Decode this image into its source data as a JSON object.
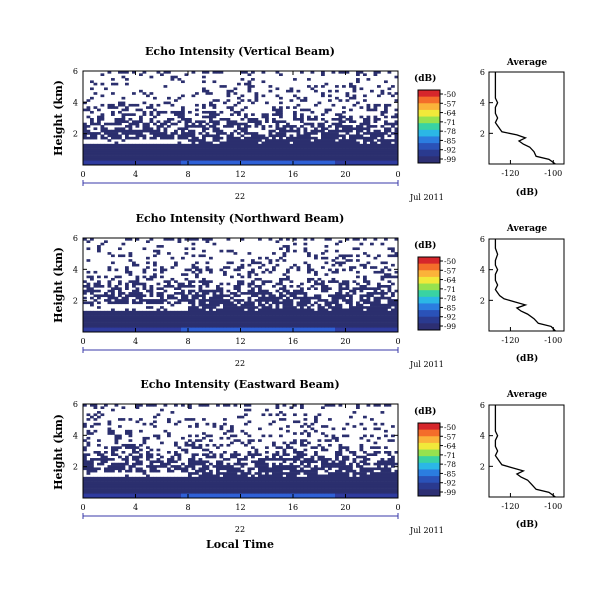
{
  "figure": {
    "xlabel": "Local Time",
    "colorbar_unit": "(dB)",
    "colorbar_ticks": [
      "-50",
      "-57",
      "-64",
      "-71",
      "-78",
      "-85",
      "-92",
      "-99"
    ],
    "colorbar_colors": [
      "#d6262b",
      "#f46d2a",
      "#fbb33a",
      "#f1e93a",
      "#96e24f",
      "#39d3a3",
      "#2bb7e6",
      "#2b7de0",
      "#2a52b8",
      "#2a3a8f",
      "#2d2f73"
    ],
    "panel_colors": {
      "dense": "#2b2f6e",
      "mid": "#2e3a9e",
      "bright": "#2e5fd6",
      "empty": "#ffffff"
    }
  },
  "chart_data": [
    {
      "type": "heatmap",
      "title": "Echo Intensity (Vertical Beam)",
      "ylabel": "Height (km)",
      "x_ticks": [
        "0",
        "4",
        "8",
        "12",
        "16",
        "20",
        "0"
      ],
      "y_ticks": [
        "2",
        "4",
        "6"
      ],
      "xlim": [
        0,
        24
      ],
      "ylim": [
        0,
        6
      ],
      "date_day": "22",
      "date_label": "Jul 2011",
      "clim": [
        -99,
        -50
      ],
      "layers": {
        "solid_top_km": 1.3,
        "bright_band_km": [
          0.0,
          0.35
        ],
        "patchy_top_km": 3.3,
        "sparse_top_km": 5.8
      },
      "profile": {
        "title": "Average",
        "xlabel": "(dB)",
        "x_ticks": [
          "-120",
          "-100"
        ],
        "xlim": [
          -130,
          -95
        ],
        "y_ticks": [
          "2",
          "4",
          "6"
        ],
        "ylim": [
          0,
          6
        ],
        "height_km": [
          0.0,
          0.3,
          0.5,
          0.8,
          1.1,
          1.3,
          1.5,
          1.7,
          1.9,
          2.1,
          2.3,
          2.5,
          2.7,
          3.0,
          3.3,
          3.7,
          4.0,
          4.3,
          4.6,
          5.0,
          5.4,
          5.8,
          6.0
        ],
        "db": [
          -99,
          -102,
          -108,
          -109,
          -111,
          -114,
          -116,
          -113,
          -117,
          -124,
          -125,
          -126,
          -127,
          -126,
          -127,
          -127,
          -126,
          -127,
          -127,
          -127,
          -127,
          -127,
          -127
        ]
      }
    },
    {
      "type": "heatmap",
      "title": "Echo Intensity (Northward Beam)",
      "ylabel": "Height (km)",
      "x_ticks": [
        "0",
        "4",
        "8",
        "12",
        "16",
        "20",
        "0"
      ],
      "y_ticks": [
        "2",
        "4",
        "6"
      ],
      "xlim": [
        0,
        24
      ],
      "ylim": [
        0,
        6
      ],
      "date_day": "22",
      "date_label": "Jul 2011",
      "clim": [
        -99,
        -50
      ],
      "layers": {
        "solid_top_km": 1.4,
        "bright_band_km": [
          0.0,
          0.3
        ],
        "patchy_top_km": 3.2,
        "sparse_top_km": 5.8
      },
      "profile": {
        "title": "Average",
        "xlabel": "(dB)",
        "x_ticks": [
          "-120",
          "-100"
        ],
        "xlim": [
          -130,
          -95
        ],
        "y_ticks": [
          "2",
          "4",
          "6"
        ],
        "ylim": [
          0,
          6
        ],
        "height_km": [
          0.0,
          0.3,
          0.5,
          0.8,
          1.1,
          1.3,
          1.5,
          1.7,
          1.9,
          2.1,
          2.3,
          2.5,
          2.7,
          3.0,
          3.3,
          3.7,
          4.0,
          4.3,
          4.6,
          5.0,
          5.4,
          5.8,
          6.0
        ],
        "db": [
          -99,
          -101,
          -107,
          -109,
          -112,
          -115,
          -117,
          -113,
          -118,
          -123,
          -125,
          -126,
          -127,
          -126,
          -127,
          -127,
          -126,
          -127,
          -127,
          -126,
          -127,
          -127,
          -127
        ]
      }
    },
    {
      "type": "heatmap",
      "title": "Echo Intensity (Eastward Beam)",
      "ylabel": "Height (km)",
      "x_ticks": [
        "0",
        "4",
        "8",
        "12",
        "16",
        "20",
        "0"
      ],
      "y_ticks": [
        "2",
        "4",
        "6"
      ],
      "xlim": [
        0,
        24
      ],
      "ylim": [
        0,
        6
      ],
      "date_day": "22",
      "date_label": "Jul 2011",
      "clim": [
        -99,
        -50
      ],
      "layers": {
        "solid_top_km": 1.3,
        "bright_band_km": [
          0.0,
          0.3
        ],
        "patchy_top_km": 3.0,
        "sparse_top_km": 5.8
      },
      "profile": {
        "title": "Average",
        "xlabel": "(dB)",
        "x_ticks": [
          "-120",
          "-100"
        ],
        "xlim": [
          -130,
          -95
        ],
        "y_ticks": [
          "2",
          "4",
          "6"
        ],
        "ylim": [
          0,
          6
        ],
        "height_km": [
          0.0,
          0.3,
          0.5,
          0.8,
          1.1,
          1.3,
          1.5,
          1.7,
          1.9,
          2.1,
          2.3,
          2.5,
          2.7,
          3.0,
          3.3,
          3.7,
          4.0,
          4.3,
          4.6,
          5.0,
          5.4,
          5.8,
          6.0
        ],
        "db": [
          -99,
          -102,
          -108,
          -110,
          -112,
          -115,
          -117,
          -114,
          -119,
          -124,
          -125,
          -126,
          -127,
          -126,
          -127,
          -127,
          -126,
          -127,
          -127,
          -127,
          -127,
          -127,
          -127
        ]
      }
    }
  ]
}
